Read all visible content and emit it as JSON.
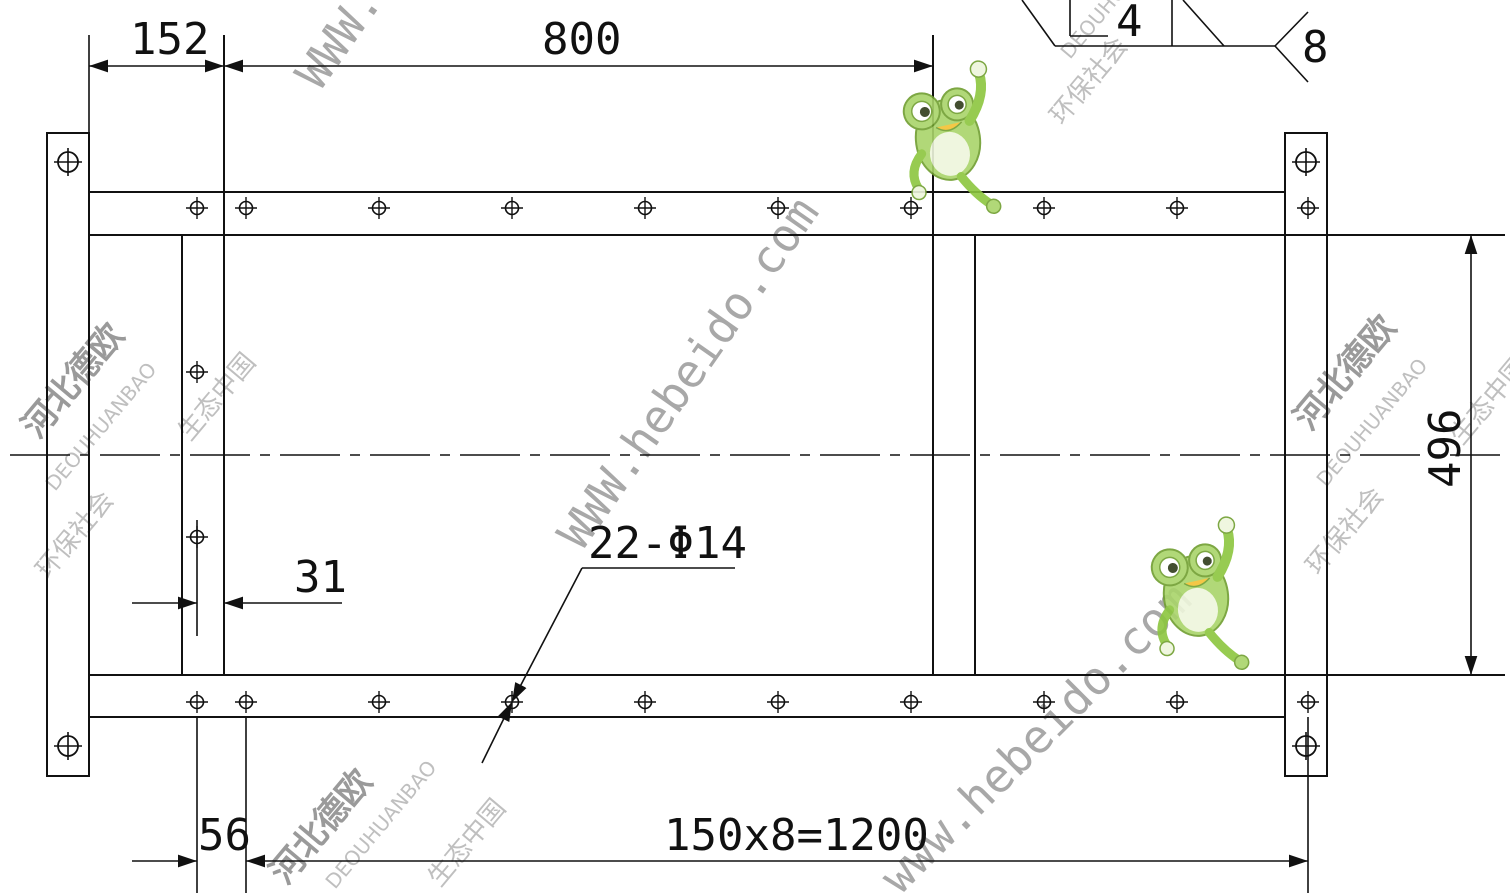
{
  "dimensions": {
    "d152": "152",
    "d800": "800",
    "d496": "496",
    "d31": "31",
    "d56": "56",
    "d1200": "150x8=1200",
    "holes": "22-Φ14"
  },
  "weld_symbol": {
    "size": "4",
    "length": "8"
  },
  "watermarks": {
    "company": "河北德欧",
    "pinyin": "DEOUHUANBAO",
    "eco": "生态中国",
    "society": "环保社会",
    "url_a": "WWW.hebeido.com",
    "url_b": "www.hebeido.com",
    "url_c": "WWW.h"
  },
  "colors": {
    "line": "#111111",
    "watermark": "#bfbfbf",
    "frog_green": "#8cc63f"
  }
}
